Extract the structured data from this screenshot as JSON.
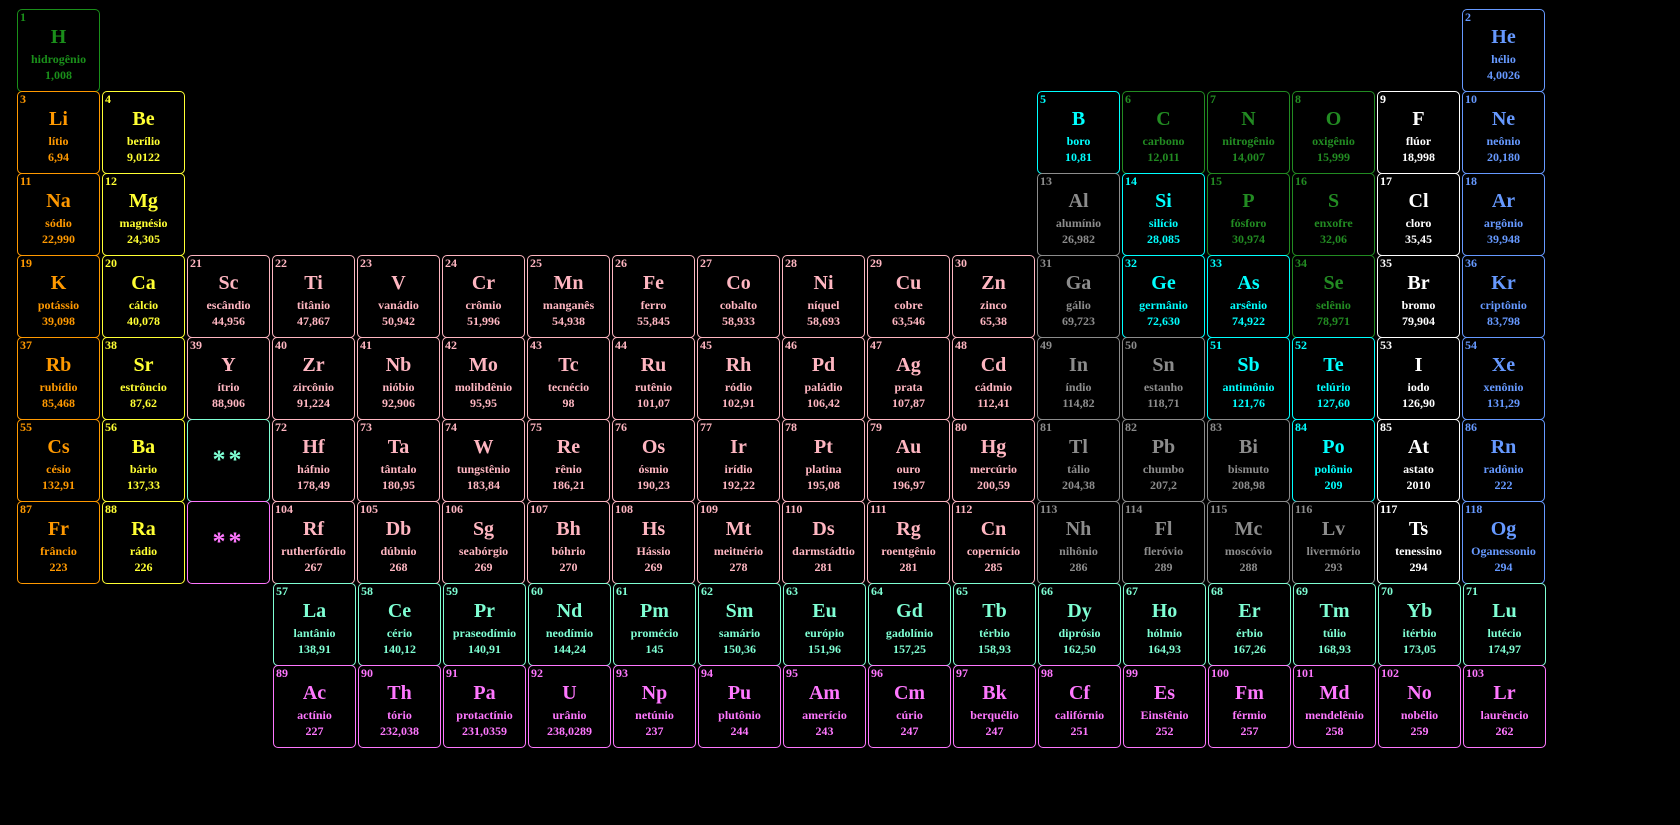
{
  "colors": {
    "h": "#1a8f1a",
    "alk": "#ff9900",
    "ae": "#ffff33",
    "tm": "#ffb6c1",
    "pt": "#8c8c8c",
    "met": "#00ffff",
    "nm": "#228b22",
    "hal": "#ffffff",
    "ng": "#6699ff",
    "la": "#7fffd4",
    "ac": "#ff77ff"
  },
  "placeholders": [
    {
      "label": "**",
      "cat": "la",
      "r": 6,
      "c": 3
    },
    {
      "label": "**",
      "cat": "ac",
      "r": 7,
      "c": 3
    }
  ],
  "elements": [
    {
      "n": "1",
      "s": "H",
      "name": "hidrogênio",
      "m": "1,008",
      "cat": "h",
      "r": 1,
      "c": 1
    },
    {
      "n": "2",
      "s": "He",
      "name": "hélio",
      "m": "4,0026",
      "cat": "ng",
      "r": 1,
      "c": 18
    },
    {
      "n": "3",
      "s": "Li",
      "name": "lítio",
      "m": "6,94",
      "cat": "alk",
      "r": 2,
      "c": 1
    },
    {
      "n": "4",
      "s": "Be",
      "name": "berílio",
      "m": "9,0122",
      "cat": "ae",
      "r": 2,
      "c": 2
    },
    {
      "n": "5",
      "s": "B",
      "name": "boro",
      "m": "10,81",
      "cat": "met",
      "r": 2,
      "c": 13
    },
    {
      "n": "6",
      "s": "C",
      "name": "carbono",
      "m": "12,011",
      "cat": "nm",
      "r": 2,
      "c": 14
    },
    {
      "n": "7",
      "s": "N",
      "name": "nitrogênio",
      "m": "14,007",
      "cat": "nm",
      "r": 2,
      "c": 15
    },
    {
      "n": "8",
      "s": "O",
      "name": "oxigênio",
      "m": "15,999",
      "cat": "nm",
      "r": 2,
      "c": 16
    },
    {
      "n": "9",
      "s": "F",
      "name": "flúor",
      "m": "18,998",
      "cat": "hal",
      "r": 2,
      "c": 17
    },
    {
      "n": "10",
      "s": "Ne",
      "name": "neônio",
      "m": "20,180",
      "cat": "ng",
      "r": 2,
      "c": 18
    },
    {
      "n": "11",
      "s": "Na",
      "name": "sódio",
      "m": "22,990",
      "cat": "alk",
      "r": 3,
      "c": 1
    },
    {
      "n": "12",
      "s": "Mg",
      "name": "magnésio",
      "m": "24,305",
      "cat": "ae",
      "r": 3,
      "c": 2
    },
    {
      "n": "13",
      "s": "Al",
      "name": "alumínio",
      "m": "26,982",
      "cat": "pt",
      "r": 3,
      "c": 13
    },
    {
      "n": "14",
      "s": "Si",
      "name": "silício",
      "m": "28,085",
      "cat": "met",
      "r": 3,
      "c": 14
    },
    {
      "n": "15",
      "s": "P",
      "name": "fósforo",
      "m": "30,974",
      "cat": "nm",
      "r": 3,
      "c": 15
    },
    {
      "n": "16",
      "s": "S",
      "name": "enxofre",
      "m": "32,06",
      "cat": "nm",
      "r": 3,
      "c": 16
    },
    {
      "n": "17",
      "s": "Cl",
      "name": "cloro",
      "m": "35,45",
      "cat": "hal",
      "r": 3,
      "c": 17
    },
    {
      "n": "18",
      "s": "Ar",
      "name": "argônio",
      "m": "39,948",
      "cat": "ng",
      "r": 3,
      "c": 18
    },
    {
      "n": "19",
      "s": "K",
      "name": "potássio",
      "m": "39,098",
      "cat": "alk",
      "r": 4,
      "c": 1
    },
    {
      "n": "20",
      "s": "Ca",
      "name": "cálcio",
      "m": "40,078",
      "cat": "ae",
      "r": 4,
      "c": 2
    },
    {
      "n": "21",
      "s": "Sc",
      "name": "escândio",
      "m": "44,956",
      "cat": "tm",
      "r": 4,
      "c": 3
    },
    {
      "n": "22",
      "s": "Ti",
      "name": "titânio",
      "m": "47,867",
      "cat": "tm",
      "r": 4,
      "c": 4
    },
    {
      "n": "23",
      "s": "V",
      "name": "vanádio",
      "m": "50,942",
      "cat": "tm",
      "r": 4,
      "c": 5
    },
    {
      "n": "24",
      "s": "Cr",
      "name": "crômio",
      "m": "51,996",
      "cat": "tm",
      "r": 4,
      "c": 6
    },
    {
      "n": "25",
      "s": "Mn",
      "name": "manganês",
      "m": "54,938",
      "cat": "tm",
      "r": 4,
      "c": 7
    },
    {
      "n": "26",
      "s": "Fe",
      "name": "ferro",
      "m": "55,845",
      "cat": "tm",
      "r": 4,
      "c": 8
    },
    {
      "n": "27",
      "s": "Co",
      "name": "cobalto",
      "m": "58,933",
      "cat": "tm",
      "r": 4,
      "c": 9
    },
    {
      "n": "28",
      "s": "Ni",
      "name": "níquel",
      "m": "58,693",
      "cat": "tm",
      "r": 4,
      "c": 10
    },
    {
      "n": "29",
      "s": "Cu",
      "name": "cobre",
      "m": "63,546",
      "cat": "tm",
      "r": 4,
      "c": 11
    },
    {
      "n": "30",
      "s": "Zn",
      "name": "zinco",
      "m": "65,38",
      "cat": "tm",
      "r": 4,
      "c": 12
    },
    {
      "n": "31",
      "s": "Ga",
      "name": "gálio",
      "m": "69,723",
      "cat": "pt",
      "r": 4,
      "c": 13
    },
    {
      "n": "32",
      "s": "Ge",
      "name": "germânio",
      "m": "72,630",
      "cat": "met",
      "r": 4,
      "c": 14
    },
    {
      "n": "33",
      "s": "As",
      "name": "arsênio",
      "m": "74,922",
      "cat": "met",
      "r": 4,
      "c": 15
    },
    {
      "n": "34",
      "s": "Se",
      "name": "selênio",
      "m": "78,971",
      "cat": "nm",
      "r": 4,
      "c": 16
    },
    {
      "n": "35",
      "s": "Br",
      "name": "bromo",
      "m": "79,904",
      "cat": "hal",
      "r": 4,
      "c": 17
    },
    {
      "n": "36",
      "s": "Kr",
      "name": "criptônio",
      "m": "83,798",
      "cat": "ng",
      "r": 4,
      "c": 18
    },
    {
      "n": "37",
      "s": "Rb",
      "name": "rubídio",
      "m": "85,468",
      "cat": "alk",
      "r": 5,
      "c": 1
    },
    {
      "n": "38",
      "s": "Sr",
      "name": "estrôncio",
      "m": "87,62",
      "cat": "ae",
      "r": 5,
      "c": 2
    },
    {
      "n": "39",
      "s": "Y",
      "name": "ítrio",
      "m": "88,906",
      "cat": "tm",
      "r": 5,
      "c": 3
    },
    {
      "n": "40",
      "s": "Zr",
      "name": "zircônio",
      "m": "91,224",
      "cat": "tm",
      "r": 5,
      "c": 4
    },
    {
      "n": "41",
      "s": "Nb",
      "name": "nióbio",
      "m": "92,906",
      "cat": "tm",
      "r": 5,
      "c": 5
    },
    {
      "n": "42",
      "s": "Mo",
      "name": "molibdênio",
      "m": "95,95",
      "cat": "tm",
      "r": 5,
      "c": 6
    },
    {
      "n": "43",
      "s": "Tc",
      "name": "tecnécio",
      "m": "98",
      "cat": "tm",
      "r": 5,
      "c": 7
    },
    {
      "n": "44",
      "s": "Ru",
      "name": "rutênio",
      "m": "101,07",
      "cat": "tm",
      "r": 5,
      "c": 8
    },
    {
      "n": "45",
      "s": "Rh",
      "name": "ródio",
      "m": "102,91",
      "cat": "tm",
      "r": 5,
      "c": 9
    },
    {
      "n": "46",
      "s": "Pd",
      "name": "paládio",
      "m": "106,42",
      "cat": "tm",
      "r": 5,
      "c": 10
    },
    {
      "n": "47",
      "s": "Ag",
      "name": "prata",
      "m": "107,87",
      "cat": "tm",
      "r": 5,
      "c": 11
    },
    {
      "n": "48",
      "s": "Cd",
      "name": "cádmio",
      "m": "112,41",
      "cat": "tm",
      "r": 5,
      "c": 12
    },
    {
      "n": "49",
      "s": "In",
      "name": "índio",
      "m": "114,82",
      "cat": "pt",
      "r": 5,
      "c": 13
    },
    {
      "n": "50",
      "s": "Sn",
      "name": "estanho",
      "m": "118,71",
      "cat": "pt",
      "r": 5,
      "c": 14
    },
    {
      "n": "51",
      "s": "Sb",
      "name": "antimônio",
      "m": "121,76",
      "cat": "met",
      "r": 5,
      "c": 15
    },
    {
      "n": "52",
      "s": "Te",
      "name": "telúrio",
      "m": "127,60",
      "cat": "met",
      "r": 5,
      "c": 16
    },
    {
      "n": "53",
      "s": "I",
      "name": "iodo",
      "m": "126,90",
      "cat": "hal",
      "r": 5,
      "c": 17
    },
    {
      "n": "54",
      "s": "Xe",
      "name": "xenônio",
      "m": "131,29",
      "cat": "ng",
      "r": 5,
      "c": 18
    },
    {
      "n": "55",
      "s": "Cs",
      "name": "césio",
      "m": "132,91",
      "cat": "alk",
      "r": 6,
      "c": 1
    },
    {
      "n": "56",
      "s": "Ba",
      "name": "bário",
      "m": "137,33",
      "cat": "ae",
      "r": 6,
      "c": 2
    },
    {
      "n": "72",
      "s": "Hf",
      "name": "háfnio",
      "m": "178,49",
      "cat": "tm",
      "r": 6,
      "c": 4
    },
    {
      "n": "73",
      "s": "Ta",
      "name": "tântalo",
      "m": "180,95",
      "cat": "tm",
      "r": 6,
      "c": 5
    },
    {
      "n": "74",
      "s": "W",
      "name": "tungstênio",
      "m": "183,84",
      "cat": "tm",
      "r": 6,
      "c": 6
    },
    {
      "n": "75",
      "s": "Re",
      "name": "rênio",
      "m": "186,21",
      "cat": "tm",
      "r": 6,
      "c": 7
    },
    {
      "n": "76",
      "s": "Os",
      "name": "ósmio",
      "m": "190,23",
      "cat": "tm",
      "r": 6,
      "c": 8
    },
    {
      "n": "77",
      "s": "Ir",
      "name": "irídio",
      "m": "192,22",
      "cat": "tm",
      "r": 6,
      "c": 9
    },
    {
      "n": "78",
      "s": "Pt",
      "name": "platina",
      "m": "195,08",
      "cat": "tm",
      "r": 6,
      "c": 10
    },
    {
      "n": "79",
      "s": "Au",
      "name": "ouro",
      "m": "196,97",
      "cat": "tm",
      "r": 6,
      "c": 11
    },
    {
      "n": "80",
      "s": "Hg",
      "name": "mercúrio",
      "m": "200,59",
      "cat": "tm",
      "r": 6,
      "c": 12
    },
    {
      "n": "81",
      "s": "Tl",
      "name": "tálio",
      "m": "204,38",
      "cat": "pt",
      "r": 6,
      "c": 13
    },
    {
      "n": "82",
      "s": "Pb",
      "name": "chumbo",
      "m": "207,2",
      "cat": "pt",
      "r": 6,
      "c": 14
    },
    {
      "n": "83",
      "s": "Bi",
      "name": "bismuto",
      "m": "208,98",
      "cat": "pt",
      "r": 6,
      "c": 15
    },
    {
      "n": "84",
      "s": "Po",
      "name": "polônio",
      "m": "209",
      "cat": "met",
      "r": 6,
      "c": 16
    },
    {
      "n": "85",
      "s": "At",
      "name": "astato",
      "m": "2010",
      "cat": "hal",
      "r": 6,
      "c": 17
    },
    {
      "n": "86",
      "s": "Rn",
      "name": "radônio",
      "m": "222",
      "cat": "ng",
      "r": 6,
      "c": 18
    },
    {
      "n": "87",
      "s": "Fr",
      "name": "frâncio",
      "m": "223",
      "cat": "alk",
      "r": 7,
      "c": 1
    },
    {
      "n": "88",
      "s": "Ra",
      "name": "rádio",
      "m": "226",
      "cat": "ae",
      "r": 7,
      "c": 2
    },
    {
      "n": "104",
      "s": "Rf",
      "name": "rutherfórdio",
      "m": "267",
      "cat": "tm",
      "r": 7,
      "c": 4
    },
    {
      "n": "105",
      "s": "Db",
      "name": "dúbnio",
      "m": "268",
      "cat": "tm",
      "r": 7,
      "c": 5
    },
    {
      "n": "106",
      "s": "Sg",
      "name": "seabórgio",
      "m": "269",
      "cat": "tm",
      "r": 7,
      "c": 6
    },
    {
      "n": "107",
      "s": "Bh",
      "name": "bóhrio",
      "m": "270",
      "cat": "tm",
      "r": 7,
      "c": 7
    },
    {
      "n": "108",
      "s": "Hs",
      "name": "Hássio",
      "m": "269",
      "cat": "tm",
      "r": 7,
      "c": 8
    },
    {
      "n": "109",
      "s": "Mt",
      "name": "meitnério",
      "m": "278",
      "cat": "tm",
      "r": 7,
      "c": 9
    },
    {
      "n": "110",
      "s": "Ds",
      "name": "darmstádtio",
      "m": "281",
      "cat": "tm",
      "r": 7,
      "c": 10
    },
    {
      "n": "111",
      "s": "Rg",
      "name": "roentgênio",
      "m": "281",
      "cat": "tm",
      "r": 7,
      "c": 11
    },
    {
      "n": "112",
      "s": "Cn",
      "name": "copernício",
      "m": "285",
      "cat": "tm",
      "r": 7,
      "c": 12
    },
    {
      "n": "113",
      "s": "Nh",
      "name": "nihônio",
      "m": "286",
      "cat": "pt",
      "r": 7,
      "c": 13
    },
    {
      "n": "114",
      "s": "Fl",
      "name": "fleróvio",
      "m": "289",
      "cat": "pt",
      "r": 7,
      "c": 14
    },
    {
      "n": "115",
      "s": "Mc",
      "name": "moscóvio",
      "m": "288",
      "cat": "pt",
      "r": 7,
      "c": 15
    },
    {
      "n": "116",
      "s": "Lv",
      "name": "livermório",
      "m": "293",
      "cat": "pt",
      "r": 7,
      "c": 16
    },
    {
      "n": "117",
      "s": "Ts",
      "name": "tenessino",
      "m": "294",
      "cat": "hal",
      "r": 7,
      "c": 17
    },
    {
      "n": "118",
      "s": "Og",
      "name": "Oganessonio",
      "m": "294",
      "cat": "ng",
      "r": 7,
      "c": 18
    },
    {
      "n": "57",
      "s": "La",
      "name": "lantânio",
      "m": "138,91",
      "cat": "la",
      "r": 8,
      "c": 4
    },
    {
      "n": "58",
      "s": "Ce",
      "name": "cério",
      "m": "140,12",
      "cat": "la",
      "r": 8,
      "c": 5
    },
    {
      "n": "59",
      "s": "Pr",
      "name": "praseodímio",
      "m": "140,91",
      "cat": "la",
      "r": 8,
      "c": 6
    },
    {
      "n": "60",
      "s": "Nd",
      "name": "neodímio",
      "m": "144,24",
      "cat": "la",
      "r": 8,
      "c": 7
    },
    {
      "n": "61",
      "s": "Pm",
      "name": "promécio",
      "m": "145",
      "cat": "la",
      "r": 8,
      "c": 8
    },
    {
      "n": "62",
      "s": "Sm",
      "name": "samário",
      "m": "150,36",
      "cat": "la",
      "r": 8,
      "c": 9
    },
    {
      "n": "63",
      "s": "Eu",
      "name": "európio",
      "m": "151,96",
      "cat": "la",
      "r": 8,
      "c": 10
    },
    {
      "n": "64",
      "s": "Gd",
      "name": "gadolínio",
      "m": "157,25",
      "cat": "la",
      "r": 8,
      "c": 11
    },
    {
      "n": "65",
      "s": "Tb",
      "name": "térbio",
      "m": "158,93",
      "cat": "la",
      "r": 8,
      "c": 12
    },
    {
      "n": "66",
      "s": "Dy",
      "name": "diprósio",
      "m": "162,50",
      "cat": "la",
      "r": 8,
      "c": 13
    },
    {
      "n": "67",
      "s": "Ho",
      "name": "hólmio",
      "m": "164,93",
      "cat": "la",
      "r": 8,
      "c": 14
    },
    {
      "n": "68",
      "s": "Er",
      "name": "érbio",
      "m": "167,26",
      "cat": "la",
      "r": 8,
      "c": 15
    },
    {
      "n": "69",
      "s": "Tm",
      "name": "túlio",
      "m": "168,93",
      "cat": "la",
      "r": 8,
      "c": 16
    },
    {
      "n": "70",
      "s": "Yb",
      "name": "itérbio",
      "m": "173,05",
      "cat": "la",
      "r": 8,
      "c": 17
    },
    {
      "n": "71",
      "s": "Lu",
      "name": "lutécio",
      "m": "174,97",
      "cat": "la",
      "r": 8,
      "c": 18
    },
    {
      "n": "89",
      "s": "Ac",
      "name": "actínio",
      "m": "227",
      "cat": "ac",
      "r": 9,
      "c": 4
    },
    {
      "n": "90",
      "s": "Th",
      "name": "tório",
      "m": "232,038",
      "cat": "ac",
      "r": 9,
      "c": 5
    },
    {
      "n": "91",
      "s": "Pa",
      "name": "protactínio",
      "m": "231,0359",
      "cat": "ac",
      "r": 9,
      "c": 6
    },
    {
      "n": "92",
      "s": "U",
      "name": "urânio",
      "m": "238,0289",
      "cat": "ac",
      "r": 9,
      "c": 7
    },
    {
      "n": "93",
      "s": "Np",
      "name": "netúnio",
      "m": "237",
      "cat": "ac",
      "r": 9,
      "c": 8
    },
    {
      "n": "94",
      "s": "Pu",
      "name": "plutônio",
      "m": "244",
      "cat": "ac",
      "r": 9,
      "c": 9
    },
    {
      "n": "95",
      "s": "Am",
      "name": "amerício",
      "m": "243",
      "cat": "ac",
      "r": 9,
      "c": 10
    },
    {
      "n": "96",
      "s": "Cm",
      "name": "cúrio",
      "m": "247",
      "cat": "ac",
      "r": 9,
      "c": 11
    },
    {
      "n": "97",
      "s": "Bk",
      "name": "berquélio",
      "m": "247",
      "cat": "ac",
      "r": 9,
      "c": 12
    },
    {
      "n": "98",
      "s": "Cf",
      "name": "califórnio",
      "m": "251",
      "cat": "ac",
      "r": 9,
      "c": 13
    },
    {
      "n": "99",
      "s": "Es",
      "name": "Einstênio",
      "m": "252",
      "cat": "ac",
      "r": 9,
      "c": 14
    },
    {
      "n": "100",
      "s": "Fm",
      "name": "férmio",
      "m": "257",
      "cat": "ac",
      "r": 9,
      "c": 15
    },
    {
      "n": "101",
      "s": "Md",
      "name": "mendelênio",
      "m": "258",
      "cat": "ac",
      "r": 9,
      "c": 16
    },
    {
      "n": "102",
      "s": "No",
      "name": "nobélio",
      "m": "259",
      "cat": "ac",
      "r": 9,
      "c": 17
    },
    {
      "n": "103",
      "s": "Lr",
      "name": "laurêncio",
      "m": "262",
      "cat": "ac",
      "r": 9,
      "c": 18
    }
  ]
}
